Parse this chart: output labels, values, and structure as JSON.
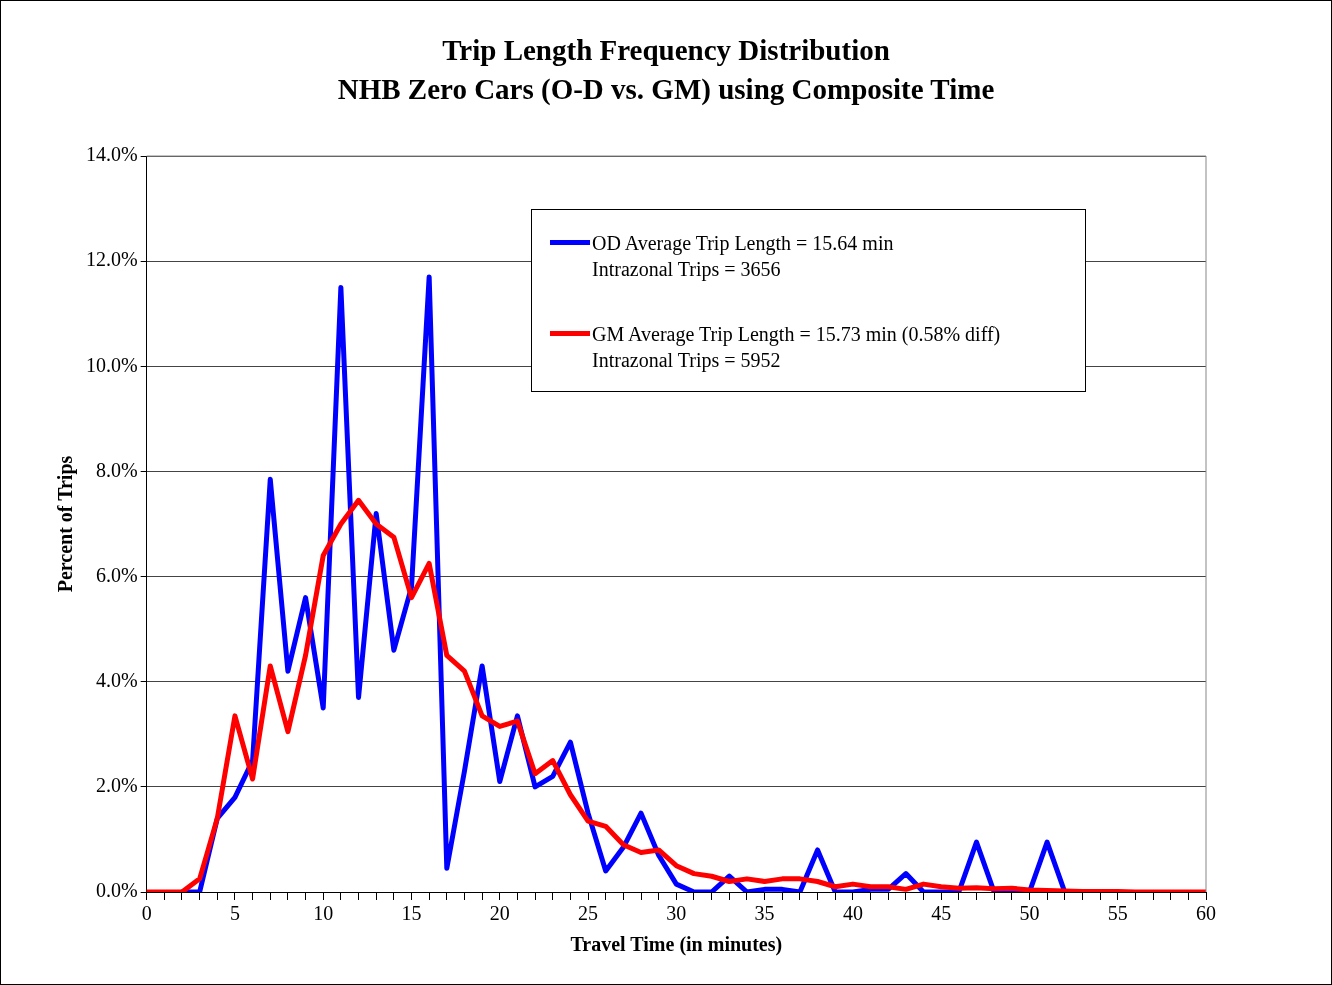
{
  "chart_data": {
    "type": "line",
    "title": "Trip Length Frequency Distribution\nNHB Zero Cars (O-D vs. GM) using Composite Time",
    "xlabel": "Travel Time (in minutes)",
    "ylabel": "Percent of Trips",
    "x": [
      0,
      1,
      2,
      3,
      4,
      5,
      6,
      7,
      8,
      9,
      10,
      11,
      12,
      13,
      14,
      15,
      16,
      17,
      18,
      19,
      20,
      21,
      22,
      23,
      24,
      25,
      26,
      27,
      28,
      29,
      30,
      31,
      32,
      33,
      34,
      35,
      36,
      37,
      38,
      39,
      40,
      41,
      42,
      43,
      44,
      45,
      46,
      47,
      48,
      49,
      50,
      51,
      52,
      53,
      54,
      55,
      56,
      57,
      58,
      59,
      60
    ],
    "series": [
      {
        "name": "OD Average Trip Length = 15.64 min\nIntrazonal Trips = 3656",
        "color": "#0000ff",
        "values": [
          null,
          null,
          0,
          0,
          1.4,
          1.8,
          2.5,
          7.85,
          4.2,
          5.6,
          3.5,
          11.5,
          3.7,
          7.2,
          4.6,
          5.8,
          11.7,
          0.45,
          2.3,
          4.3,
          2.1,
          3.35,
          2.0,
          2.2,
          2.85,
          1.5,
          0.4,
          0.85,
          1.5,
          0.7,
          0.15,
          0,
          0,
          0.3,
          0,
          0.05,
          0.05,
          0,
          0.8,
          0,
          0,
          0.05,
          0.05,
          0.35,
          0,
          0,
          0,
          0.95,
          0,
          0,
          0,
          0.95,
          0,
          null,
          null,
          null,
          null,
          null,
          null,
          null,
          null
        ]
      },
      {
        "name": "GM Average Trip Length = 15.73 min (0.58% diff)\nIntrazonal Trips = 5952",
        "color": "#ff0000",
        "values": [
          0,
          0,
          0,
          0.25,
          1.4,
          3.35,
          2.15,
          4.3,
          3.05,
          4.5,
          6.4,
          7.0,
          7.45,
          7.0,
          6.75,
          5.6,
          6.25,
          4.5,
          4.2,
          3.35,
          3.15,
          3.25,
          2.25,
          2.5,
          1.85,
          1.35,
          1.25,
          0.9,
          0.75,
          0.8,
          0.5,
          0.35,
          0.3,
          0.2,
          0.25,
          0.2,
          0.25,
          0.25,
          0.2,
          0.1,
          0.15,
          0.1,
          0.1,
          0.05,
          0.15,
          0.1,
          0.07,
          0.08,
          0.06,
          0.07,
          0.04,
          0.03,
          0.02,
          0.01,
          0.01,
          0.01,
          0,
          0,
          0,
          0,
          0
        ]
      }
    ],
    "xlim": [
      0,
      60
    ],
    "xticks": [
      0,
      {
        "value": 1,
        "label": null
      },
      {
        "value": 2,
        "label": null
      },
      {
        "value": 3,
        "label": null
      },
      {
        "value": 4,
        "label": null
      },
      5,
      {
        "value": 6,
        "label": null
      },
      {
        "value": 7,
        "label": null
      },
      {
        "value": 8,
        "label": null
      },
      {
        "value": 9,
        "label": null
      },
      10,
      {
        "value": 11,
        "label": null
      },
      {
        "value": 12,
        "label": null
      },
      {
        "value": 13,
        "label": null
      },
      {
        "value": 14,
        "label": null
      },
      15,
      {
        "value": 16,
        "label": null
      },
      {
        "value": 17,
        "label": null
      },
      {
        "value": 18,
        "label": null
      },
      {
        "value": 19,
        "label": null
      },
      20,
      {
        "value": 21,
        "label": null
      },
      {
        "value": 22,
        "label": null
      },
      {
        "value": 23,
        "label": null
      },
      {
        "value": 24,
        "label": null
      },
      25,
      {
        "value": 26,
        "label": null
      },
      {
        "value": 27,
        "label": null
      },
      {
        "value": 28,
        "label": null
      },
      {
        "value": 29,
        "label": null
      },
      30,
      {
        "value": 31,
        "label": null
      },
      {
        "value": 32,
        "label": null
      },
      {
        "value": 33,
        "label": null
      },
      {
        "value": 34,
        "label": null
      },
      35,
      {
        "value": 36,
        "label": null
      },
      {
        "value": 37,
        "label": null
      },
      {
        "value": 38,
        "label": null
      },
      {
        "value": 39,
        "label": null
      },
      40,
      {
        "value": 41,
        "label": null
      },
      {
        "value": 42,
        "label": null
      },
      {
        "value": 43,
        "label": null
      },
      {
        "value": 44,
        "label": null
      },
      45,
      {
        "value": 46,
        "label": null
      },
      {
        "value": 47,
        "label": null
      },
      {
        "value": 48,
        "label": null
      },
      {
        "value": 49,
        "label": null
      },
      50,
      {
        "value": 51,
        "label": null
      },
      {
        "value": 52,
        "label": null
      },
      {
        "value": 53,
        "label": null
      },
      {
        "value": 54,
        "label": null
      },
      55,
      {
        "value": 56,
        "label": null
      },
      {
        "value": 57,
        "label": null
      },
      {
        "value": 58,
        "label": null
      },
      {
        "value": 59,
        "label": null
      },
      60
    ],
    "ylim": [
      0,
      14
    ],
    "yticks": [
      {
        "value": 0,
        "label": "0.0%"
      },
      {
        "value": 2,
        "label": "2.0%"
      },
      {
        "value": 4,
        "label": "4.0%"
      },
      {
        "value": 6,
        "label": "6.0%"
      },
      {
        "value": 8,
        "label": "8.0%"
      },
      {
        "value": 10,
        "label": "10.0%"
      },
      {
        "value": 12,
        "label": "12.0%"
      },
      {
        "value": 14,
        "label": "14.0%"
      }
    ],
    "grid": "y",
    "legend": "top right",
    "marker": "none",
    "line_style": "solid"
  }
}
